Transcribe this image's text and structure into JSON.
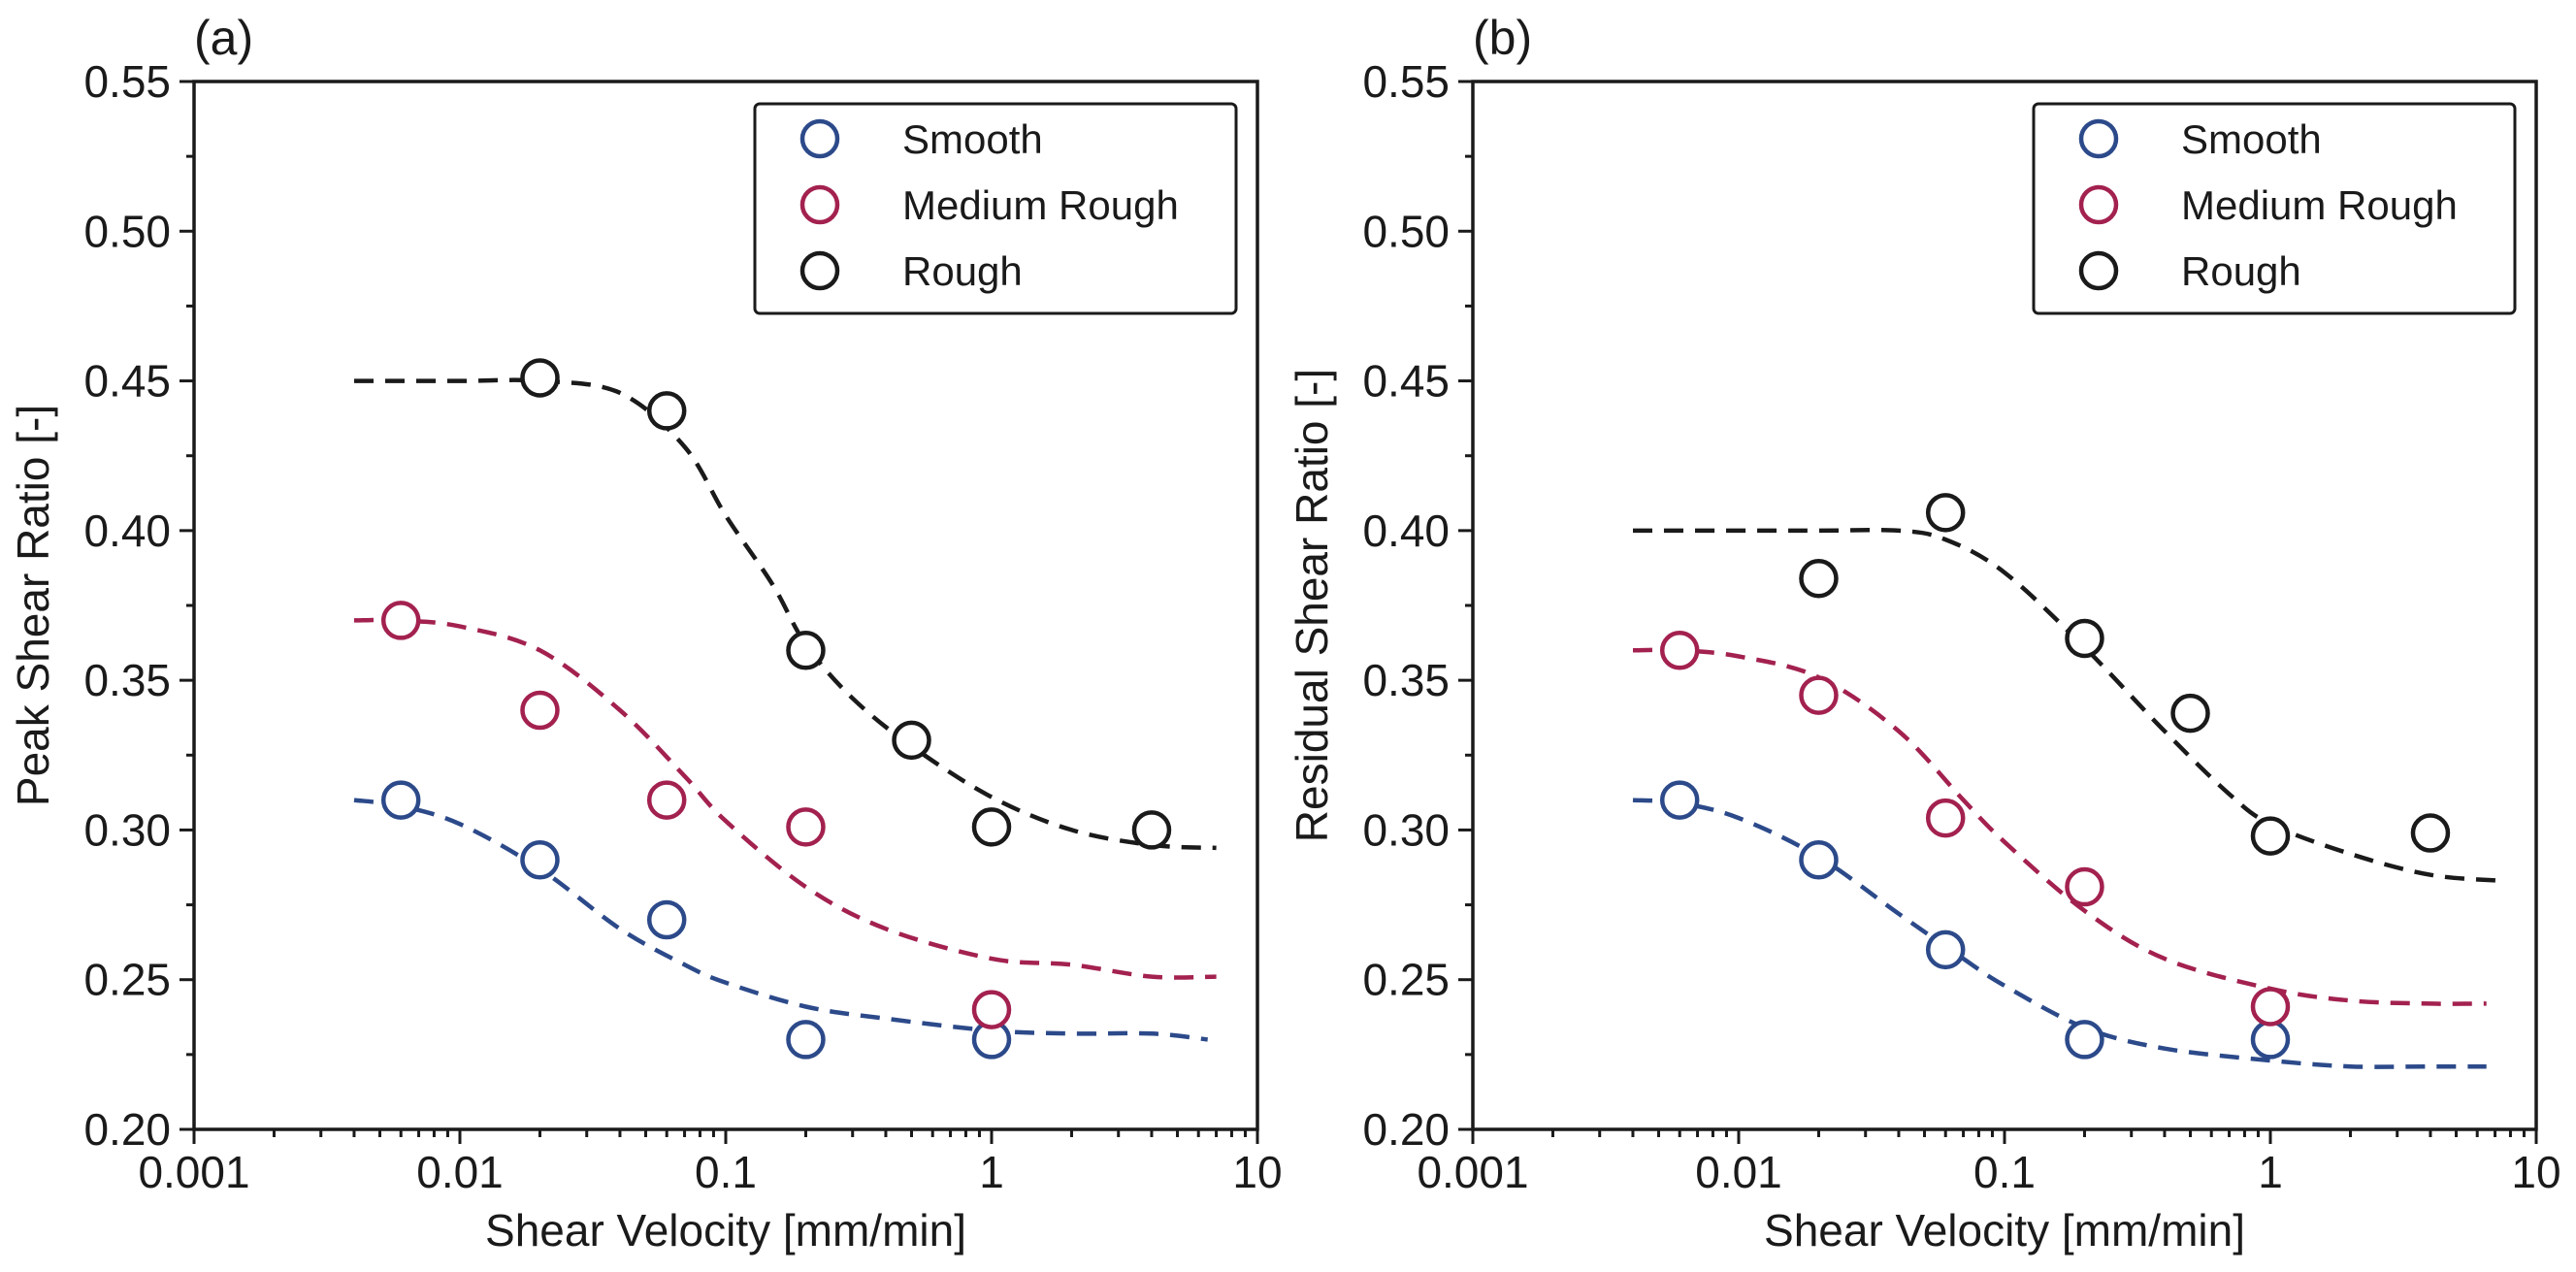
{
  "colors": {
    "smooth": "#2c4a8a",
    "medium_rough": "#a3214f",
    "rough": "#1a1a1a"
  },
  "chart_data": [
    {
      "type": "scatter",
      "panel_label": "(a)",
      "title": "",
      "xlabel": "Shear Velocity [mm/min]",
      "ylabel": "Peak Shear Ratio [-]",
      "xscale": "log",
      "xlim": [
        0.001,
        10
      ],
      "ylim": [
        0.2,
        0.55
      ],
      "xticks": [
        0.001,
        0.01,
        0.1,
        1,
        10
      ],
      "xtick_labels": [
        "0.001",
        "0.01",
        "0.1",
        "1",
        "10"
      ],
      "yticks": [
        0.2,
        0.25,
        0.3,
        0.35,
        0.4,
        0.45,
        0.5,
        0.55
      ],
      "ytick_labels": [
        "0.20",
        "0.25",
        "0.30",
        "0.35",
        "0.40",
        "0.45",
        "0.50",
        "0.55"
      ],
      "legend_position": "top-right",
      "series": [
        {
          "key": "smooth",
          "name": "Smooth",
          "color": "#2c4a8a",
          "x": [
            0.006,
            0.02,
            0.06,
            0.2,
            1
          ],
          "y": [
            0.31,
            0.29,
            0.27,
            0.23,
            0.23
          ],
          "fit": {
            "x": [
              0.004,
              0.006,
              0.01,
              0.02,
              0.04,
              0.07,
              0.1,
              0.2,
              0.4,
              1,
              2,
              4,
              6.5
            ],
            "y": [
              0.31,
              0.308,
              0.302,
              0.287,
              0.267,
              0.255,
              0.249,
              0.241,
              0.237,
              0.233,
              0.232,
              0.232,
              0.23
            ]
          }
        },
        {
          "key": "medium_rough",
          "name": "Medium Rough",
          "color": "#a3214f",
          "x": [
            0.006,
            0.02,
            0.06,
            0.2,
            1
          ],
          "y": [
            0.37,
            0.34,
            0.31,
            0.301,
            0.24
          ],
          "fit": {
            "x": [
              0.004,
              0.006,
              0.01,
              0.02,
              0.04,
              0.07,
              0.1,
              0.2,
              0.4,
              1,
              2,
              4,
              7
            ],
            "y": [
              0.37,
              0.37,
              0.368,
              0.36,
              0.34,
              0.318,
              0.303,
              0.281,
              0.267,
              0.257,
              0.255,
              0.251,
              0.251
            ]
          }
        },
        {
          "key": "rough",
          "name": "Rough",
          "color": "#1a1a1a",
          "x": [
            0.02,
            0.06,
            0.2,
            0.5,
            1,
            4
          ],
          "y": [
            0.451,
            0.44,
            0.36,
            0.33,
            0.301,
            0.3
          ],
          "fit": {
            "x": [
              0.004,
              0.01,
              0.02,
              0.04,
              0.07,
              0.1,
              0.15,
              0.2,
              0.3,
              0.5,
              1,
              2,
              4,
              7
            ],
            "y": [
              0.45,
              0.45,
              0.45,
              0.446,
              0.428,
              0.405,
              0.382,
              0.362,
              0.344,
              0.328,
              0.311,
              0.3,
              0.295,
              0.294
            ]
          }
        }
      ]
    },
    {
      "type": "scatter",
      "panel_label": "(b)",
      "title": "",
      "xlabel": "Shear Velocity [mm/min]",
      "ylabel": "Residual Shear Ratio [-]",
      "xscale": "log",
      "xlim": [
        0.001,
        10
      ],
      "ylim": [
        0.2,
        0.55
      ],
      "xticks": [
        0.001,
        0.01,
        0.1,
        1,
        10
      ],
      "xtick_labels": [
        "0.001",
        "0.01",
        "0.1",
        "1",
        "10"
      ],
      "yticks": [
        0.2,
        0.25,
        0.3,
        0.35,
        0.4,
        0.45,
        0.5,
        0.55
      ],
      "ytick_labels": [
        "0.20",
        "0.25",
        "0.30",
        "0.35",
        "0.40",
        "0.45",
        "0.50",
        "0.55"
      ],
      "legend_position": "top-right",
      "series": [
        {
          "key": "smooth",
          "name": "Smooth",
          "color": "#2c4a8a",
          "x": [
            0.006,
            0.02,
            0.06,
            0.2,
            1
          ],
          "y": [
            0.31,
            0.29,
            0.26,
            0.23,
            0.23
          ],
          "fit": {
            "x": [
              0.004,
              0.006,
              0.01,
              0.02,
              0.04,
              0.07,
              0.1,
              0.2,
              0.4,
              1,
              2,
              4,
              6.5
            ],
            "y": [
              0.31,
              0.309,
              0.304,
              0.291,
              0.272,
              0.257,
              0.248,
              0.234,
              0.227,
              0.223,
              0.221,
              0.221,
              0.221
            ]
          }
        },
        {
          "key": "medium_rough",
          "name": "Medium Rough",
          "color": "#a3214f",
          "x": [
            0.006,
            0.02,
            0.06,
            0.2,
            1
          ],
          "y": [
            0.36,
            0.345,
            0.304,
            0.281,
            0.241
          ],
          "fit": {
            "x": [
              0.004,
              0.006,
              0.01,
              0.02,
              0.04,
              0.07,
              0.1,
              0.2,
              0.4,
              1,
              2,
              4,
              6.5
            ],
            "y": [
              0.36,
              0.36,
              0.358,
              0.351,
              0.333,
              0.31,
              0.296,
              0.273,
              0.257,
              0.247,
              0.243,
              0.242,
              0.242
            ]
          }
        },
        {
          "key": "rough",
          "name": "Rough",
          "color": "#1a1a1a",
          "x": [
            0.02,
            0.06,
            0.2,
            0.5,
            1,
            4
          ],
          "y": [
            0.384,
            0.406,
            0.364,
            0.339,
            0.298,
            0.299
          ],
          "fit": {
            "x": [
              0.004,
              0.01,
              0.02,
              0.04,
              0.06,
              0.1,
              0.2,
              0.4,
              0.7,
              1,
              2,
              4,
              7.5
            ],
            "y": [
              0.4,
              0.4,
              0.4,
              0.4,
              0.397,
              0.386,
              0.361,
              0.333,
              0.312,
              0.302,
              0.292,
              0.285,
              0.283
            ]
          }
        }
      ]
    }
  ]
}
